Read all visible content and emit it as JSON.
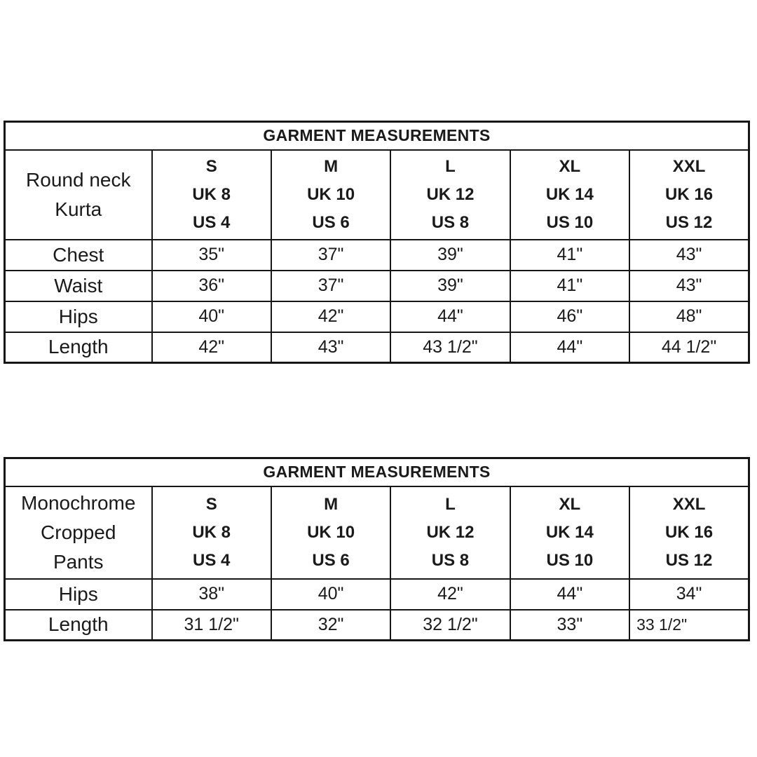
{
  "style": {
    "text": "#1a1a1a",
    "border": "#161616",
    "background": "#ffffff"
  },
  "tables": [
    {
      "title": "GARMENT MEASUREMENTS",
      "product_lines": [
        "Round neck",
        "Kurta"
      ],
      "size_columns": [
        {
          "size": "S",
          "uk": "UK 8",
          "us": "US 4"
        },
        {
          "size": "M",
          "uk": "UK 10",
          "us": "US 6"
        },
        {
          "size": "L",
          "uk": "UK 12",
          "us": "US 8"
        },
        {
          "size": "XL",
          "uk": "UK 14",
          "us": "US 10"
        },
        {
          "size": "XXL",
          "uk": "UK 16",
          "us": "US 12"
        }
      ],
      "rows": [
        {
          "label": "Chest",
          "values": [
            "35\"",
            "37\"",
            "39\"",
            "41\"",
            "43\""
          ]
        },
        {
          "label": "Waist",
          "values": [
            "36\"",
            "37\"",
            "39\"",
            "41\"",
            "43\""
          ]
        },
        {
          "label": "Hips",
          "values": [
            "40\"",
            "42\"",
            "44\"",
            "46\"",
            "48\""
          ]
        },
        {
          "label": "Length",
          "values": [
            "42\"",
            "43\"",
            "43 1/2\"",
            "44\"",
            "44 1/2\""
          ]
        }
      ]
    },
    {
      "title": "GARMENT MEASUREMENTS",
      "product_lines": [
        "Monochrome",
        "Cropped",
        "Pants"
      ],
      "size_columns": [
        {
          "size": "S",
          "uk": "UK 8",
          "us": "US 4"
        },
        {
          "size": "M",
          "uk": "UK 10",
          "us": "US 6"
        },
        {
          "size": "L",
          "uk": "UK 12",
          "us": "US 8"
        },
        {
          "size": "XL",
          "uk": "UK 14",
          "us": "US 10"
        },
        {
          "size": "XXL",
          "uk": "UK 16",
          "us": "US 12"
        }
      ],
      "rows": [
        {
          "label": "Hips",
          "values": [
            "38\"",
            "40\"",
            "42\"",
            "44\"",
            "34\""
          ]
        },
        {
          "label": "Length",
          "values": [
            "31 1/2\"",
            "32\"",
            "32 1/2\"",
            "33\"",
            "33 1/2\""
          ]
        }
      ]
    }
  ]
}
